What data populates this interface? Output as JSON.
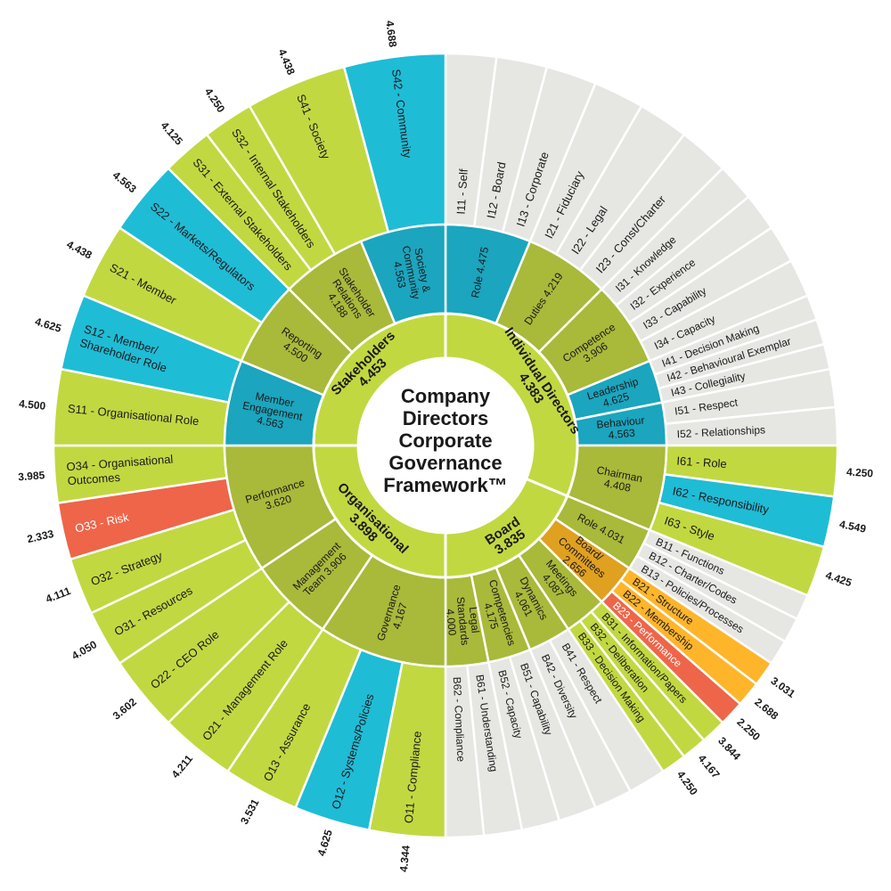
{
  "title_lines": [
    "Company",
    "Directors",
    "Corporate",
    "Governance",
    "Framework™"
  ],
  "colors": {
    "green": "#c2d841",
    "mid_green": "#a9b93a",
    "dark_green": "#9fb036",
    "blue": "#1fbcd6",
    "mid_blue": "#1ba5be",
    "red": "#ee654a",
    "orange": "#ffb52a",
    "dark_orange": "#e0a020",
    "grey": "#e6e6e3"
  },
  "domains": [
    {
      "name": "Individual Directors",
      "score": "4.383",
      "start": 0,
      "end": 112.5
    },
    {
      "name": "Board",
      "score": "3.835",
      "start": 112.5,
      "end": 180
    },
    {
      "name": "Organisational",
      "score": "3.898",
      "start": 180,
      "end": 270
    },
    {
      "name": "Stakeholders",
      "score": "4.453",
      "start": 270,
      "end": 360
    }
  ],
  "subdomains": [
    {
      "lines": [
        "Role 4.475"
      ],
      "start": 0,
      "end": 22.5,
      "color": "mid_blue"
    },
    {
      "lines": [
        "Duties 4.219"
      ],
      "start": 22.5,
      "end": 45,
      "color": "mid_green"
    },
    {
      "lines": [
        "Competence",
        "3.906"
      ],
      "start": 45,
      "end": 67.5,
      "color": "mid_green"
    },
    {
      "lines": [
        "Leadership",
        "4.625"
      ],
      "start": 67.5,
      "end": 78.75,
      "color": "mid_blue"
    },
    {
      "lines": [
        "Behaviour",
        "4.563"
      ],
      "start": 78.75,
      "end": 90,
      "color": "mid_blue"
    },
    {
      "lines": [
        "Chairman",
        "4.408"
      ],
      "start": 90,
      "end": 112.5,
      "color": "mid_green"
    },
    {
      "lines": [
        "Role 4.031"
      ],
      "start": 112.5,
      "end": 123.75,
      "color": "mid_green"
    },
    {
      "lines": [
        "Board/",
        "Committees",
        "2.656"
      ],
      "start": 123.75,
      "end": 135,
      "color": "dark_orange"
    },
    {
      "lines": [
        "Meetings",
        "4.087"
      ],
      "start": 135,
      "end": 146.25,
      "color": "mid_green"
    },
    {
      "lines": [
        "Dynamics",
        "4.061"
      ],
      "start": 146.25,
      "end": 157.5,
      "color": "mid_green"
    },
    {
      "lines": [
        "Competencies",
        "4.175"
      ],
      "start": 157.5,
      "end": 168.75,
      "color": "mid_green"
    },
    {
      "lines": [
        "Legal",
        "Standards",
        "4.000"
      ],
      "start": 168.75,
      "end": 180,
      "color": "mid_green"
    },
    {
      "lines": [
        "Governance",
        "4.167"
      ],
      "start": 180,
      "end": 213.75,
      "color": "mid_green"
    },
    {
      "lines": [
        "Management",
        "Team 3.906"
      ],
      "start": 213.75,
      "end": 236.25,
      "color": "mid_green"
    },
    {
      "lines": [
        "Performance",
        "3.620"
      ],
      "start": 236.25,
      "end": 270,
      "color": "mid_green"
    },
    {
      "lines": [
        "Member",
        "Engagement",
        "4.563"
      ],
      "start": 270,
      "end": 292.5,
      "color": "mid_blue"
    },
    {
      "lines": [
        "Reporting",
        "4.500"
      ],
      "start": 292.5,
      "end": 315,
      "color": "mid_green"
    },
    {
      "lines": [
        "Stakeholder",
        "Relations",
        "4.188"
      ],
      "start": 315,
      "end": 337.5,
      "color": "mid_green"
    },
    {
      "lines": [
        "Society &",
        "Community",
        "4.563"
      ],
      "start": 337.5,
      "end": 360,
      "color": "mid_blue"
    }
  ],
  "items": [
    {
      "label": "I11 - Self",
      "score": "",
      "color": "grey",
      "start": 0,
      "end": 7.5
    },
    {
      "label": "I12 - Board",
      "score": "",
      "color": "grey",
      "start": 7.5,
      "end": 15
    },
    {
      "label": "I13 - Corporate",
      "score": "",
      "color": "grey",
      "start": 15,
      "end": 22.5
    },
    {
      "label": "I21 - Fiduciary",
      "score": "",
      "color": "grey",
      "start": 22.5,
      "end": 30
    },
    {
      "label": "I22 - Legal",
      "score": "",
      "color": "grey",
      "start": 30,
      "end": 37.5
    },
    {
      "label": "I23 - Const/Charter",
      "score": "",
      "color": "grey",
      "start": 37.5,
      "end": 45
    },
    {
      "label": "I31 - Knowledge",
      "score": "",
      "color": "grey",
      "start": 45,
      "end": 50.625
    },
    {
      "label": "I32 - Experience",
      "score": "",
      "color": "grey",
      "start": 50.625,
      "end": 56.25
    },
    {
      "label": "I33 - Capability",
      "score": "",
      "color": "grey",
      "start": 56.25,
      "end": 61.875
    },
    {
      "label": "I34 - Capacity",
      "score": "",
      "color": "grey",
      "start": 61.875,
      "end": 67.5
    },
    {
      "label": "I41 - Decision Making",
      "score": "",
      "color": "grey",
      "start": 67.5,
      "end": 71.25
    },
    {
      "label": "I42 - Behavioural Exemplar",
      "score": "",
      "color": "grey",
      "start": 71.25,
      "end": 75
    },
    {
      "label": "I43 - Collegiality",
      "score": "",
      "color": "grey",
      "start": 75,
      "end": 78.75
    },
    {
      "label": "I51 - Respect",
      "score": "",
      "color": "grey",
      "start": 78.75,
      "end": 84.375
    },
    {
      "label": "I52 - Relationships",
      "score": "",
      "color": "grey",
      "start": 84.375,
      "end": 90
    },
    {
      "label": "I61 - Role",
      "score": "4.250",
      "color": "green",
      "start": 90,
      "end": 97.5
    },
    {
      "label": "I62 - Responsibility",
      "score": "4.549",
      "color": "blue",
      "start": 97.5,
      "end": 105
    },
    {
      "label": "I63 - Style",
      "score": "4.425",
      "color": "green",
      "start": 105,
      "end": 112.5
    },
    {
      "label": "B11 - Functions",
      "score": "",
      "color": "grey",
      "start": 112.5,
      "end": 116.25
    },
    {
      "label": "B12 - Charter/Codes",
      "score": "",
      "color": "grey",
      "start": 116.25,
      "end": 120
    },
    {
      "label": "B13 - Policies/Processes",
      "score": "",
      "color": "grey",
      "start": 120,
      "end": 123.75
    },
    {
      "label": "B21 - Structure",
      "score": "3.031",
      "color": "orange",
      "start": 123.75,
      "end": 127.5
    },
    {
      "label": "B22 - Membership",
      "score": "2.688",
      "color": "orange",
      "start": 127.5,
      "end": 131.25
    },
    {
      "label": "B23 - Performance",
      "score": "2.250",
      "color": "red",
      "start": 131.25,
      "end": 135
    },
    {
      "label": "B31 - Information/Papers",
      "score": "3.844",
      "color": "green",
      "start": 135,
      "end": 138.75
    },
    {
      "label": "B32 - Deliberation",
      "score": "4.167",
      "color": "green",
      "start": 138.75,
      "end": 142.5
    },
    {
      "label": "B33 - Decision Making",
      "score": "4.250",
      "color": "green",
      "start": 142.5,
      "end": 146.25
    },
    {
      "label": "B41 - Respect",
      "score": "",
      "color": "grey",
      "start": 146.25,
      "end": 151.875
    },
    {
      "label": "B42 - Diversity",
      "score": "",
      "color": "grey",
      "start": 151.875,
      "end": 157.5
    },
    {
      "label": "B51 - Capability",
      "score": "",
      "color": "grey",
      "start": 157.5,
      "end": 163.125
    },
    {
      "label": "B52 - Capacity",
      "score": "",
      "color": "grey",
      "start": 163.125,
      "end": 168.75
    },
    {
      "label": "B61 - Understanding",
      "score": "",
      "color": "grey",
      "start": 168.75,
      "end": 174.375
    },
    {
      "label": "B62 - Compliance",
      "score": "",
      "color": "grey",
      "start": 174.375,
      "end": 180
    },
    {
      "label": "O11 - Compliance",
      "score": "4.344",
      "color": "green",
      "start": 180,
      "end": 191.25
    },
    {
      "label": "O12 - Systems/Policies",
      "score": "4.625",
      "color": "blue",
      "start": 191.25,
      "end": 202.5
    },
    {
      "label": "O13 - Assurance",
      "score": "3.531",
      "color": "green",
      "start": 202.5,
      "end": 213.75
    },
    {
      "label": "O21 - Management Role",
      "score": "4.211",
      "color": "green",
      "start": 213.75,
      "end": 225
    },
    {
      "label": "O22 - CEO Role",
      "score": "3.602",
      "color": "green",
      "start": 225,
      "end": 236.25
    },
    {
      "label": "O31 - Resources",
      "score": "4.050",
      "color": "green",
      "start": 236.25,
      "end": 244.6875
    },
    {
      "label": "O32 - Strategy",
      "score": "4.111",
      "color": "green",
      "start": 244.6875,
      "end": 253.125
    },
    {
      "label": "O33 - Risk",
      "score": "2.333",
      "color": "red",
      "start": 253.125,
      "end": 261.5625
    },
    {
      "label": "O34 - Organisational Outcomes",
      "score": "3.985",
      "color": "green",
      "start": 261.5625,
      "end": 270
    },
    {
      "label": "S11 - Organisational Role",
      "score": "4.500",
      "color": "green",
      "start": 270,
      "end": 281.25
    },
    {
      "label": "S12 - Member/ Shareholder Role",
      "score": "4.625",
      "color": "blue",
      "start": 281.25,
      "end": 292.5
    },
    {
      "label": "S21 - Member",
      "score": "4.438",
      "color": "green",
      "start": 292.5,
      "end": 303.75
    },
    {
      "label": "S22 - Markets/Regulators",
      "score": "4.563",
      "color": "blue",
      "start": 303.75,
      "end": 315
    },
    {
      "label": "S31 - External Stakeholders",
      "score": "4.125",
      "color": "green",
      "start": 315,
      "end": 322.5
    },
    {
      "label": "S32 - Internal Stakeholders",
      "score": "4.250",
      "color": "green",
      "start": 322.5,
      "end": 330
    },
    {
      "label": "S41 - Society",
      "score": "4.438",
      "color": "green",
      "start": 330,
      "end": 345
    },
    {
      "label": "S42 - Community",
      "score": "4.688",
      "color": "blue",
      "start": 345,
      "end": 360
    }
  ]
}
